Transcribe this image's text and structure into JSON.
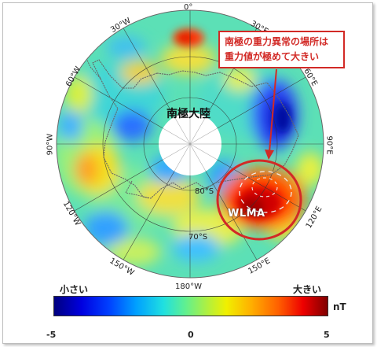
{
  "map": {
    "continent_label": "南極大陸",
    "anomaly_label": "WLMA",
    "longitude_labels": [
      "0°",
      "30°E",
      "60°E",
      "90°E",
      "120°E",
      "150°E",
      "180°W",
      "150°W",
      "120°W",
      "90°W",
      "60°W",
      "30°W"
    ],
    "latitude_labels": [
      "80°S",
      "70°S"
    ]
  },
  "callout": {
    "line1": "南極の重力異常の場所は",
    "line2": "重力値が極めて大きい"
  },
  "colorbar": {
    "low_label": "小さい",
    "high_label": "大きい",
    "unit": "nT",
    "min": "-5",
    "mid": "0",
    "max": "5"
  },
  "colors": {
    "callout": "#d22a26",
    "low": "#00007f",
    "high": "#800000"
  }
}
